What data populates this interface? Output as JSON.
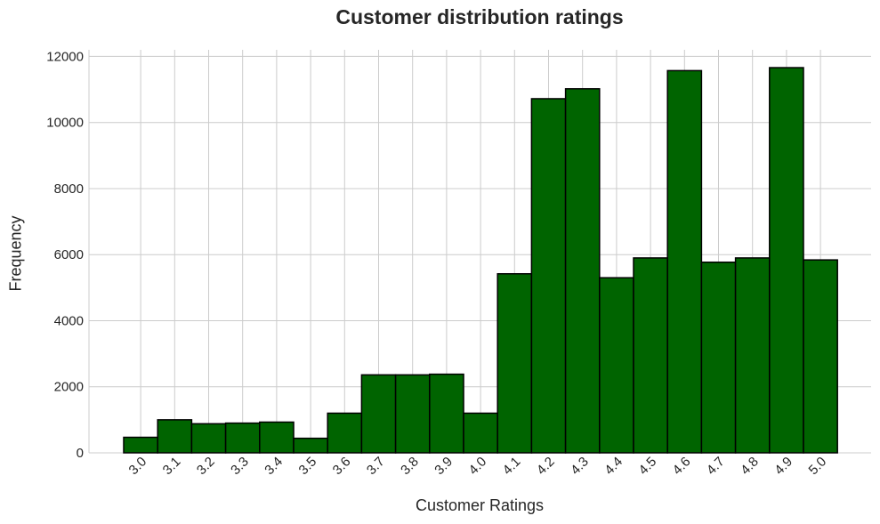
{
  "chart_data": {
    "type": "bar",
    "title": "Customer distribution ratings",
    "xlabel": "Customer Ratings",
    "ylabel": "Frequency",
    "categories": [
      "3.0",
      "3.1",
      "3.2",
      "3.3",
      "3.4",
      "3.5",
      "3.6",
      "3.7",
      "3.8",
      "3.9",
      "4.0",
      "4.1",
      "4.2",
      "4.3",
      "4.4",
      "4.5",
      "4.6",
      "4.7",
      "4.8",
      "4.9",
      "5.0"
    ],
    "values": [
      470,
      1000,
      880,
      900,
      930,
      440,
      1200,
      2360,
      2360,
      2380,
      1200,
      5420,
      10720,
      11020,
      5300,
      5900,
      11570,
      5770,
      5900,
      11660,
      5840
    ],
    "yticks": [
      0,
      2000,
      4000,
      6000,
      8000,
      10000,
      12000
    ],
    "ylim": [
      0,
      12200
    ],
    "grid": true,
    "bar_color": "#006400",
    "edge_color": "#000000",
    "grid_color": "#cccccc"
  }
}
